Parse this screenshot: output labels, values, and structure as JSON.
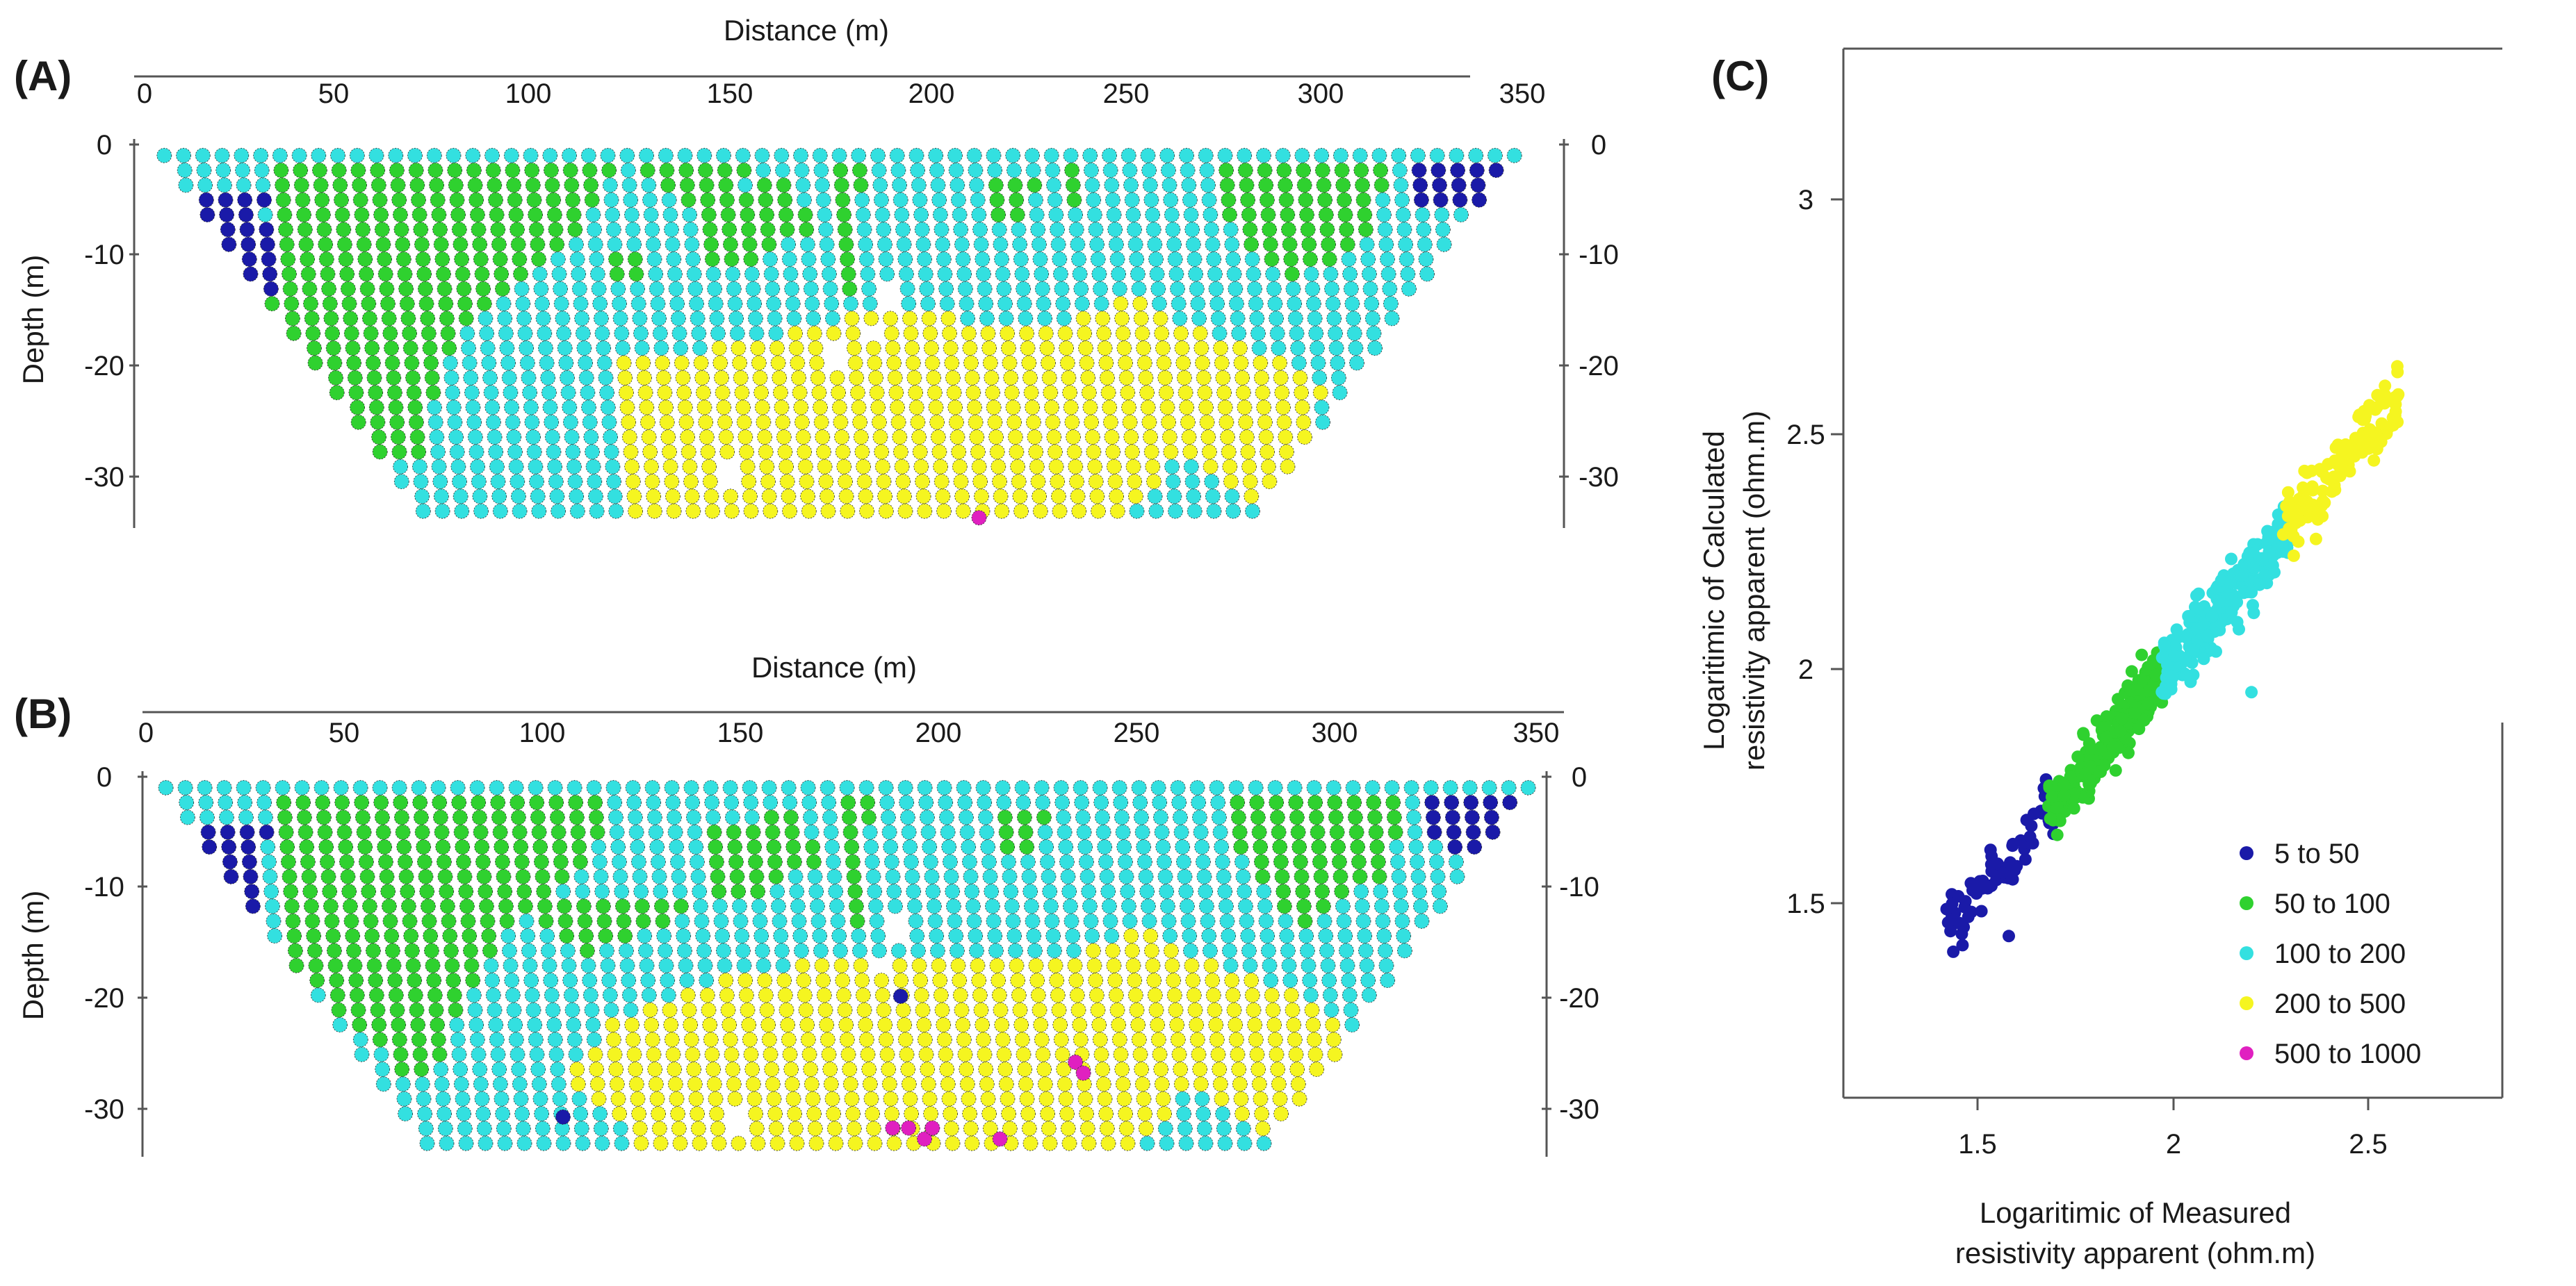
{
  "colors": {
    "r5_50": "#1a1aa8",
    "r50_100": "#2fd12f",
    "r100_200": "#33e0e0",
    "r200_500": "#f5f520",
    "r500_1000": "#e020c0"
  },
  "panels": {
    "A": {
      "label": "(A)",
      "xlabel": "Distance (m)",
      "ylabel": "Depth (m)",
      "x_ticks": [
        "0",
        "50",
        "100",
        "150",
        "200",
        "250",
        "300",
        "350"
      ],
      "y_ticks_left": [
        "0",
        "-10",
        "-20",
        "-30"
      ],
      "y_ticks_right": [
        "0",
        "-10",
        "-20",
        "-30"
      ]
    },
    "B": {
      "label": "(B)",
      "xlabel": "Distance (m)",
      "ylabel": "Depth (m)",
      "x_ticks": [
        "0",
        "50",
        "100",
        "150",
        "200",
        "250",
        "300",
        "350"
      ],
      "y_ticks_left": [
        "0",
        "-10",
        "-20",
        "-30"
      ],
      "y_ticks_right": [
        "0",
        "-10",
        "-20",
        "-30"
      ]
    },
    "C": {
      "label": "(C)",
      "xlabel_line1": "Logaritimic of Measured",
      "xlabel_line2": "resistivity apparent (ohm.m)",
      "ylabel_line1": "Logaritimic of Calculated",
      "ylabel_line2": "resistivity apparent (ohm.m)",
      "x_ticks": [
        "1.5",
        "2",
        "2.5"
      ],
      "y_ticks": [
        "1.5",
        "2",
        "2.5",
        "3"
      ]
    }
  },
  "legend": [
    {
      "label": "5  to  50",
      "color_key": "r5_50"
    },
    {
      "label": "50  to  100",
      "color_key": "r50_100"
    },
    {
      "label": "100  to  200",
      "color_key": "r100_200"
    },
    {
      "label": "200  to  500",
      "color_key": "r200_500"
    },
    {
      "label": "500  to  1000",
      "color_key": "r500_1000"
    }
  ],
  "chart_data": [
    {
      "type": "scatter",
      "panel": "A",
      "xlabel": "Distance (m)",
      "ylabel": "Depth (m)",
      "xlim": [
        0,
        350
      ],
      "ylim": [
        -35,
        0
      ],
      "section": {
        "surface_x": [
          5,
          348
        ],
        "bottom_depth": -34,
        "bottom_x": [
          72,
          282
        ],
        "depth_step": 1.35,
        "x_step": 4.9
      },
      "zones": [
        {
          "class": "r5_50",
          "poly": [
            [
              8,
              -4
            ],
            [
              30,
              -4
            ],
            [
              33,
              -15
            ],
            [
              10,
              -8
            ]
          ]
        },
        {
          "class": "r5_50",
          "poly": [
            [
              30,
              -5
            ],
            [
              44,
              -5
            ],
            [
              53,
              -12
            ],
            [
              35,
              -14
            ]
          ]
        },
        {
          "class": "r5_50",
          "poly": [
            [
              58,
              -6
            ],
            [
              66,
              -7
            ],
            [
              68,
              -12
            ],
            [
              60,
              -13
            ],
            [
              56,
              -10
            ]
          ]
        },
        {
          "class": "r5_50",
          "poly": [
            [
              72,
              -4
            ],
            [
              80,
              -4
            ],
            [
              88,
              -12
            ],
            [
              76,
              -9
            ]
          ]
        },
        {
          "class": "r5_50",
          "poly": [
            [
              318,
              -1
            ],
            [
              348,
              -1
            ],
            [
              340,
              -6
            ],
            [
              322,
              -5
            ]
          ]
        },
        {
          "class": "r5_50",
          "poly": [
            [
              304,
              -3
            ],
            [
              310,
              -3
            ],
            [
              308,
              -5
            ]
          ]
        },
        {
          "class": "r50_100",
          "poly": [
            [
              30,
              -1
            ],
            [
              120,
              -1
            ],
            [
              110,
              -8
            ],
            [
              88,
              -14
            ],
            [
              78,
              -19
            ],
            [
              70,
              -28
            ],
            [
              62,
              -29
            ],
            [
              32,
              -16
            ],
            [
              34,
              -8
            ]
          ]
        },
        {
          "class": "r50_100",
          "poly": [
            [
              118,
              -1
            ],
            [
              160,
              -1
            ],
            [
              140,
              -6
            ]
          ]
        },
        {
          "class": "r50_100",
          "poly": [
            [
              140,
              -5
            ],
            [
              165,
              -3
            ],
            [
              170,
              -8
            ],
            [
              145,
              -12
            ]
          ]
        },
        {
          "class": "r50_100",
          "poly": [
            [
              176,
              -1
            ],
            [
              182,
              -1
            ],
            [
              182,
              -16
            ],
            [
              176,
              -12
            ]
          ]
        },
        {
          "class": "r50_100",
          "poly": [
            [
              210,
              -3
            ],
            [
              230,
              -3
            ],
            [
              220,
              -8
            ]
          ]
        },
        {
          "class": "r50_100",
          "poly": [
            [
              232,
              -1
            ],
            [
              238,
              -1
            ],
            [
              236,
              -6
            ]
          ]
        },
        {
          "class": "r50_100",
          "poly": [
            [
              270,
              -1
            ],
            [
              318,
              -1
            ],
            [
              312,
              -8
            ],
            [
              290,
              -13
            ],
            [
              276,
              -7
            ]
          ]
        },
        {
          "class": "r50_100",
          "poly": [
            [
              116,
              -10
            ],
            [
              126,
              -10
            ],
            [
              124,
              -14
            ]
          ]
        },
        {
          "class": "r200_500",
          "poly": [
            [
              118,
              -20
            ],
            [
              152,
              -18
            ],
            [
              190,
              -15
            ],
            [
              225,
              -17
            ],
            [
              250,
              -14
            ],
            [
              275,
              -18
            ],
            [
              290,
              -20
            ],
            [
              300,
              -22
            ],
            [
              296,
              -30
            ],
            [
              280,
              -33
            ],
            [
              262,
              -28
            ],
            [
              250,
              -34
            ],
            [
              122,
              -34
            ],
            [
              120,
              -26
            ]
          ]
        },
        {
          "class": "r200_500",
          "poly": [
            [
              10,
              -1
            ],
            [
              14,
              -1
            ],
            [
              12,
              -2
            ]
          ]
        },
        {
          "class": "r200_500",
          "poly": [
            [
              35,
              -1
            ],
            [
              46,
              -1
            ],
            [
              40,
              -2
            ]
          ]
        },
        {
          "class": "r200_500",
          "poly": [
            [
              258,
              -1
            ],
            [
              266,
              -1
            ],
            [
              262,
              -2
            ]
          ]
        }
      ],
      "background_class": "r100_200",
      "holes": [
        [
          190,
          -14
        ],
        [
          185,
          -17
        ],
        [
          174,
          -19
        ],
        [
          150,
          -30
        ]
      ],
      "specials": [
        {
          "x": 212,
          "y": -34,
          "class": "r500_1000"
        }
      ]
    },
    {
      "type": "scatter",
      "panel": "B",
      "xlabel": "Distance (m)",
      "ylabel": "Depth (m)",
      "xlim": [
        0,
        350
      ],
      "ylim": [
        -35,
        0
      ],
      "section": {
        "surface_x": [
          5,
          348
        ],
        "bottom_depth": -34,
        "bottom_x": [
          72,
          282
        ],
        "depth_step": 1.35,
        "x_step": 4.9
      },
      "zones": [
        {
          "class": "r5_50",
          "poly": [
            [
              8,
              -4
            ],
            [
              30,
              -4
            ],
            [
              32,
              -16
            ],
            [
              8,
              -8
            ]
          ]
        },
        {
          "class": "r5_50",
          "poly": [
            [
              30,
              -5
            ],
            [
              44,
              -5
            ],
            [
              50,
              -12
            ],
            [
              36,
              -15
            ]
          ]
        },
        {
          "class": "r5_50",
          "poly": [
            [
              62,
              -6
            ],
            [
              68,
              -7
            ],
            [
              72,
              -12
            ],
            [
              62,
              -12
            ]
          ]
        },
        {
          "class": "r5_50",
          "poly": [
            [
              78,
              -8
            ],
            [
              84,
              -8
            ],
            [
              86,
              -12
            ],
            [
              80,
              -12
            ]
          ]
        },
        {
          "class": "r5_50",
          "poly": [
            [
              318,
              -1
            ],
            [
              348,
              -1
            ],
            [
              340,
              -7
            ],
            [
              322,
              -6
            ]
          ]
        },
        {
          "class": "r5_50",
          "poly": [
            [
              304,
              -3
            ],
            [
              310,
              -3
            ],
            [
              308,
              -5
            ]
          ]
        },
        {
          "class": "r50_100",
          "poly": [
            [
              30,
              -1
            ],
            [
              118,
              -1
            ],
            [
              112,
              -8
            ],
            [
              92,
              -14
            ],
            [
              80,
              -20
            ],
            [
              72,
              -27
            ],
            [
              64,
              -27
            ],
            [
              34,
              -16
            ],
            [
              36,
              -8
            ]
          ]
        },
        {
          "class": "r50_100",
          "poly": [
            [
              90,
              -10
            ],
            [
              140,
              -12
            ],
            [
              110,
              -16
            ]
          ]
        },
        {
          "class": "r50_100",
          "poly": [
            [
              140,
              -5
            ],
            [
              165,
              -3
            ],
            [
              170,
              -8
            ],
            [
              145,
              -12
            ]
          ]
        },
        {
          "class": "r50_100",
          "poly": [
            [
              176,
              -1
            ],
            [
              182,
              -1
            ],
            [
              182,
              -16
            ],
            [
              176,
              -12
            ]
          ]
        },
        {
          "class": "r50_100",
          "poly": [
            [
              210,
              -3
            ],
            [
              230,
              -3
            ],
            [
              220,
              -8
            ]
          ]
        },
        {
          "class": "r50_100",
          "poly": [
            [
              270,
              -1
            ],
            [
              318,
              -1
            ],
            [
              312,
              -9
            ],
            [
              290,
              -14
            ],
            [
              276,
              -7
            ]
          ]
        },
        {
          "class": "r200_500",
          "poly": [
            [
              118,
              -22
            ],
            [
              150,
              -18
            ],
            [
              188,
              -16
            ],
            [
              225,
              -17
            ],
            [
              250,
              -14
            ],
            [
              275,
              -18
            ],
            [
              290,
              -20
            ],
            [
              302,
              -22
            ],
            [
              296,
              -30
            ],
            [
              280,
              -33
            ],
            [
              262,
              -28
            ],
            [
              250,
              -34
            ],
            [
              126,
              -34
            ],
            [
              116,
              -30
            ],
            [
              105,
              -28
            ]
          ]
        },
        {
          "class": "r200_500",
          "poly": [
            [
              10,
              -1
            ],
            [
              14,
              -1
            ],
            [
              12,
              -2
            ]
          ]
        },
        {
          "class": "r200_500",
          "poly": [
            [
              28,
              -1
            ],
            [
              44,
              -1
            ],
            [
              38,
              -2
            ]
          ]
        },
        {
          "class": "r200_500",
          "poly": [
            [
              172,
              -1
            ],
            [
              178,
              -1
            ],
            [
              175,
              -2
            ]
          ]
        }
      ],
      "background_class": "r100_200",
      "holes": [
        [
          190,
          -14
        ],
        [
          186,
          -17
        ],
        [
          150,
          -31
        ]
      ],
      "specials": [
        {
          "x": 190,
          "y": -20,
          "class": "r5_50"
        },
        {
          "x": 105,
          "y": -31,
          "class": "r5_50"
        },
        {
          "x": 234,
          "y": -26,
          "class": "r500_1000"
        },
        {
          "x": 236,
          "y": -27,
          "class": "r500_1000"
        },
        {
          "x": 188,
          "y": -32,
          "class": "r500_1000"
        },
        {
          "x": 192,
          "y": -32,
          "class": "r500_1000"
        },
        {
          "x": 196,
          "y": -33,
          "class": "r500_1000"
        },
        {
          "x": 198,
          "y": -32,
          "class": "r500_1000"
        },
        {
          "x": 215,
          "y": -33,
          "class": "r500_1000"
        }
      ]
    },
    {
      "type": "scatter",
      "panel": "C",
      "xlabel": "Logaritimic of Measured resistivity apparent (ohm.m)",
      "ylabel": "Logaritimic of Calculated resistivity apparent (ohm.m)",
      "xlim": [
        1.0,
        2.95
      ],
      "ylim": [
        1.1,
        3.3
      ],
      "trend": {
        "slope": 0.98,
        "intercept": 0.05
      },
      "series": [
        {
          "name": "5  to  50",
          "color_key": "r5_50",
          "x_range": [
            1.42,
            1.7
          ],
          "count": 70
        },
        {
          "name": "50  to  100",
          "color_key": "r50_100",
          "x_range": [
            1.68,
            1.98
          ],
          "count": 220
        },
        {
          "name": "100  to  200",
          "color_key": "r100_200",
          "x_range": [
            1.97,
            2.3
          ],
          "count": 260
        },
        {
          "name": "200  to  500",
          "color_key": "r200_500",
          "x_range": [
            2.28,
            2.58
          ],
          "count": 130
        },
        {
          "name": "500  to  1000",
          "color_key": "r500_1000",
          "x_range": [
            2.5,
            2.58
          ],
          "count": 0
        }
      ],
      "outliers": [
        {
          "x": 1.58,
          "y": 1.43,
          "class": "r5_50"
        },
        {
          "x": 2.2,
          "y": 1.95,
          "class": "r100_200"
        }
      ],
      "grid": false,
      "legend_position": "bottom-right"
    }
  ]
}
